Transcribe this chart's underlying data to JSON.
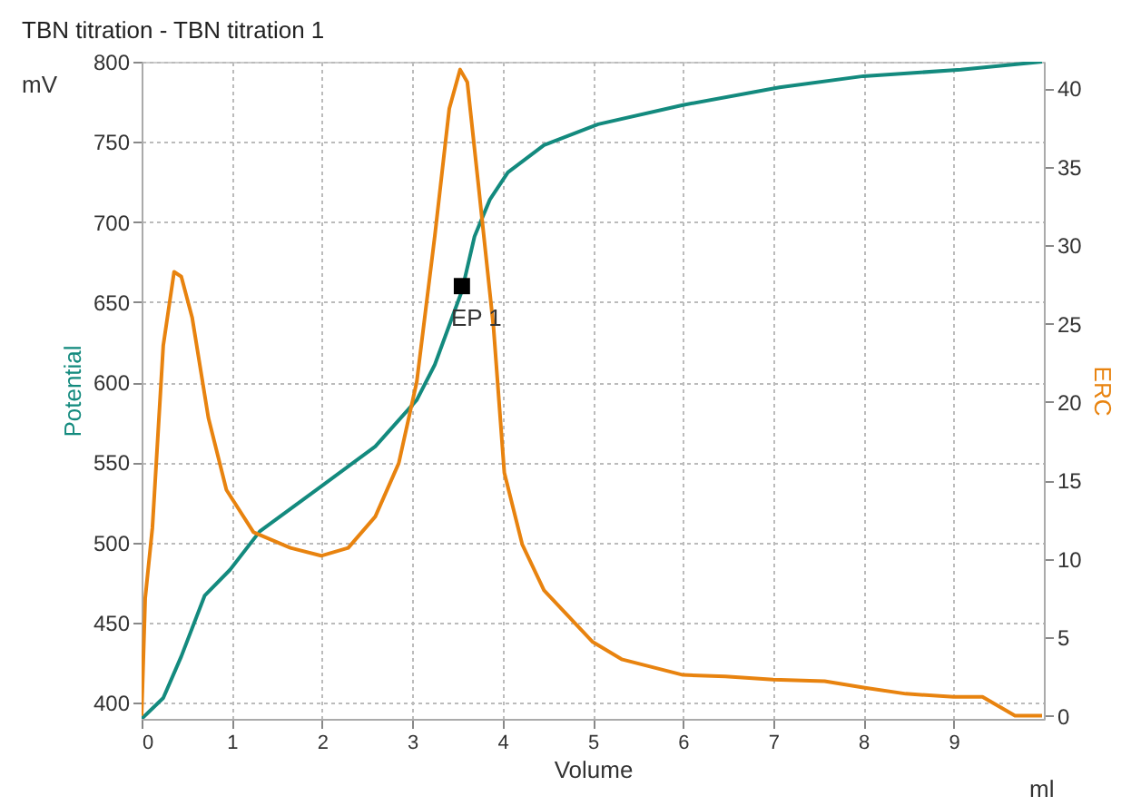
{
  "chart_data": {
    "type": "line",
    "title": "TBN titration - TBN titration 1",
    "xlabel": "Volume",
    "ylabel": "Potential",
    "y2label": "ERC",
    "annotations": [
      "mV",
      "ml",
      {
        "text": "EP 1",
        "x": 3.55,
        "y": 660
      }
    ],
    "xlim": [
      0,
      10
    ],
    "xticks": [
      0,
      1,
      2,
      3,
      4,
      5,
      6,
      7,
      8,
      9
    ],
    "ylim": [
      390,
      800
    ],
    "yticks": [
      400,
      450,
      500,
      550,
      600,
      650,
      700,
      750,
      800
    ],
    "y2lim": [
      -0.2,
      41.7
    ],
    "y2ticks": [
      0,
      5,
      10,
      15,
      20,
      25,
      30,
      35,
      40
    ],
    "grid": true,
    "series": [
      {
        "color": "#138a7e",
        "x": [
          0,
          0.24,
          0.44,
          0.7,
          0.98,
          1.31,
          1.99,
          2.59,
          3.05,
          3.25,
          3.55,
          3.69,
          3.86,
          4.06,
          4.46,
          5.06,
          6.0,
          7.07,
          8.0,
          9.08,
          9.98
        ],
        "values": [
          390,
          403,
          429,
          467,
          483,
          507,
          535,
          560,
          589,
          611,
          657,
          691,
          714,
          731,
          748,
          761,
          773,
          784,
          791,
          795,
          800
        ]
      },
      {
        "axis": "y2",
        "color": "#e8830f",
        "x": [
          0,
          0.04,
          0.12,
          0.24,
          0.36,
          0.44,
          0.56,
          0.74,
          0.94,
          1.24,
          1.65,
          1.99,
          2.29,
          2.59,
          2.85,
          3.05,
          3.25,
          3.41,
          3.53,
          3.61,
          3.73,
          3.9,
          4.02,
          4.22,
          4.46,
          5.0,
          5.32,
          6.0,
          6.47,
          7.0,
          7.57,
          8.0,
          8.47,
          9.0,
          9.32,
          9.68,
          9.98
        ],
        "values": [
          0,
          7.5,
          12,
          23.6,
          28.3,
          28,
          25.4,
          19,
          14.4,
          11.7,
          10.7,
          10.2,
          10.7,
          12.7,
          16.1,
          21.3,
          30.6,
          38.7,
          41.2,
          40.4,
          34,
          24.8,
          15.5,
          10.9,
          8,
          4.7,
          3.6,
          2.6,
          2.5,
          2.3,
          2.2,
          1.8,
          1.4,
          1.2,
          1.2,
          0,
          0
        ]
      },
      {
        "type": "scatter",
        "marker": "square",
        "color": "#000000",
        "x": [
          3.55
        ],
        "values": [
          660
        ]
      }
    ]
  }
}
